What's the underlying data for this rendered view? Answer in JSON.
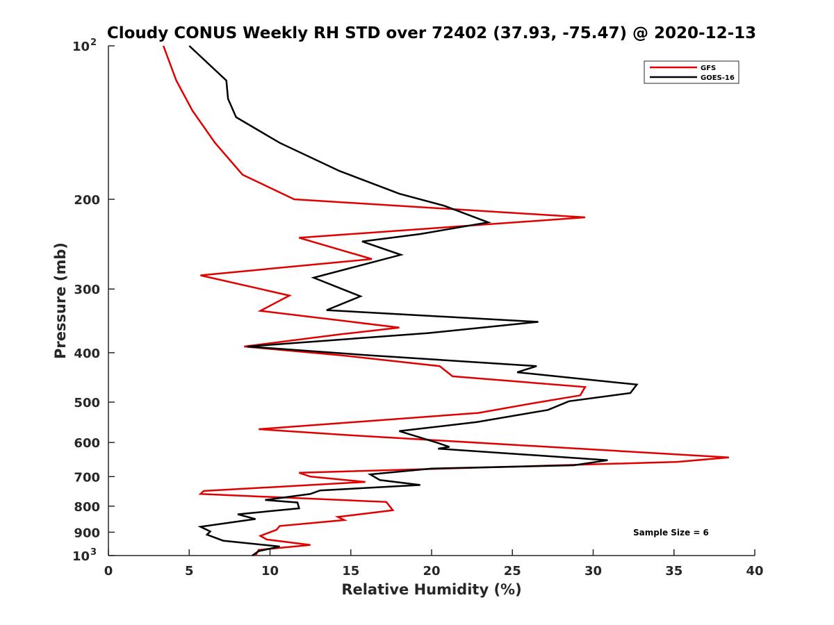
{
  "chart_data": {
    "type": "line",
    "title": "Cloudy CONUS Weekly RH STD over 72402 (37.93, -75.47) @ 2020-12-13",
    "xlabel": "Relative Humidity (%)",
    "ylabel": "Pressure (mb)",
    "xlim": [
      0,
      40
    ],
    "ylim": [
      100,
      1000
    ],
    "y_scale": "log",
    "y_reversed": true,
    "x_ticks": [
      "0",
      "5",
      "10",
      "15",
      "20",
      "25",
      "30",
      "35",
      "40"
    ],
    "y_ticks": [
      {
        "value": 100,
        "label": "10",
        "sup": "2"
      },
      {
        "value": 200,
        "label": "200",
        "sup": ""
      },
      {
        "value": 300,
        "label": "300",
        "sup": ""
      },
      {
        "value": 400,
        "label": "400",
        "sup": ""
      },
      {
        "value": 500,
        "label": "500",
        "sup": ""
      },
      {
        "value": 600,
        "label": "600",
        "sup": ""
      },
      {
        "value": 700,
        "label": "700",
        "sup": ""
      },
      {
        "value": 800,
        "label": "800",
        "sup": ""
      },
      {
        "value": 900,
        "label": "900",
        "sup": ""
      },
      {
        "value": 1000,
        "label": "10",
        "sup": "3"
      }
    ],
    "grid": false,
    "legend": "top-right",
    "annotation": "Sample Size = 6",
    "series": [
      {
        "name": "GFS",
        "color": "#e00000",
        "points": [
          [
            3.4,
            100
          ],
          [
            4.2,
            117
          ],
          [
            5.2,
            134
          ],
          [
            6.6,
            155
          ],
          [
            8.3,
            179
          ],
          [
            11.5,
            200
          ],
          [
            29.5,
            217
          ],
          [
            11.8,
            238
          ],
          [
            16.3,
            262
          ],
          [
            5.7,
            282
          ],
          [
            11.2,
            309
          ],
          [
            9.4,
            331
          ],
          [
            18.0,
            357
          ],
          [
            14.4,
            368
          ],
          [
            8.4,
            389
          ],
          [
            14.5,
            405
          ],
          [
            20.5,
            425
          ],
          [
            21.3,
            445
          ],
          [
            29.5,
            467
          ],
          [
            29.2,
            485
          ],
          [
            26.2,
            503
          ],
          [
            22.9,
            525
          ],
          [
            9.3,
            565
          ],
          [
            14.7,
            580
          ],
          [
            38.4,
            642
          ],
          [
            35.2,
            655
          ],
          [
            11.8,
            688
          ],
          [
            12.5,
            700
          ],
          [
            15.9,
            717
          ],
          [
            5.9,
            747
          ],
          [
            5.7,
            757
          ],
          [
            17.2,
            785
          ],
          [
            17.6,
            815
          ],
          [
            14.2,
            840
          ],
          [
            14.6,
            852
          ],
          [
            10.6,
            875
          ],
          [
            10.4,
            890
          ],
          [
            9.4,
            915
          ],
          [
            9.8,
            930
          ],
          [
            12.5,
            953
          ],
          [
            9.3,
            975
          ],
          [
            9.1,
            1000
          ]
        ]
      },
      {
        "name": "GOES-16",
        "color": "#000000",
        "points": [
          [
            5.0,
            100
          ],
          [
            7.3,
            117
          ],
          [
            7.4,
            127
          ],
          [
            7.9,
            138
          ],
          [
            10.6,
            155
          ],
          [
            14.3,
            176
          ],
          [
            18.0,
            195
          ],
          [
            20.8,
            206
          ],
          [
            23.5,
            222
          ],
          [
            19.3,
            234
          ],
          [
            15.7,
            242
          ],
          [
            18.1,
            257
          ],
          [
            12.7,
            285
          ],
          [
            15.6,
            310
          ],
          [
            13.5,
            330
          ],
          [
            26.6,
            348
          ],
          [
            19.8,
            366
          ],
          [
            8.6,
            389
          ],
          [
            16.3,
            405
          ],
          [
            26.5,
            425
          ],
          [
            25.3,
            437
          ],
          [
            32.7,
            462
          ],
          [
            32.3,
            480
          ],
          [
            28.5,
            498
          ],
          [
            27.2,
            518
          ],
          [
            22.8,
            547
          ],
          [
            18.0,
            570
          ],
          [
            20.3,
            600
          ],
          [
            21.1,
            612
          ],
          [
            20.4,
            617
          ],
          [
            30.9,
            650
          ],
          [
            28.8,
            665
          ],
          [
            20.0,
            675
          ],
          [
            16.2,
            693
          ],
          [
            16.8,
            711
          ],
          [
            19.3,
            727
          ],
          [
            13.1,
            745
          ],
          [
            12.5,
            757
          ],
          [
            9.7,
            778
          ],
          [
            11.7,
            787
          ],
          [
            11.8,
            808
          ],
          [
            8.0,
            830
          ],
          [
            9.1,
            848
          ],
          [
            5.7,
            878
          ],
          [
            6.3,
            897
          ],
          [
            6.1,
            910
          ],
          [
            7.1,
            935
          ],
          [
            10.6,
            960
          ],
          [
            9.3,
            980
          ],
          [
            8.9,
            1000
          ]
        ]
      }
    ]
  }
}
